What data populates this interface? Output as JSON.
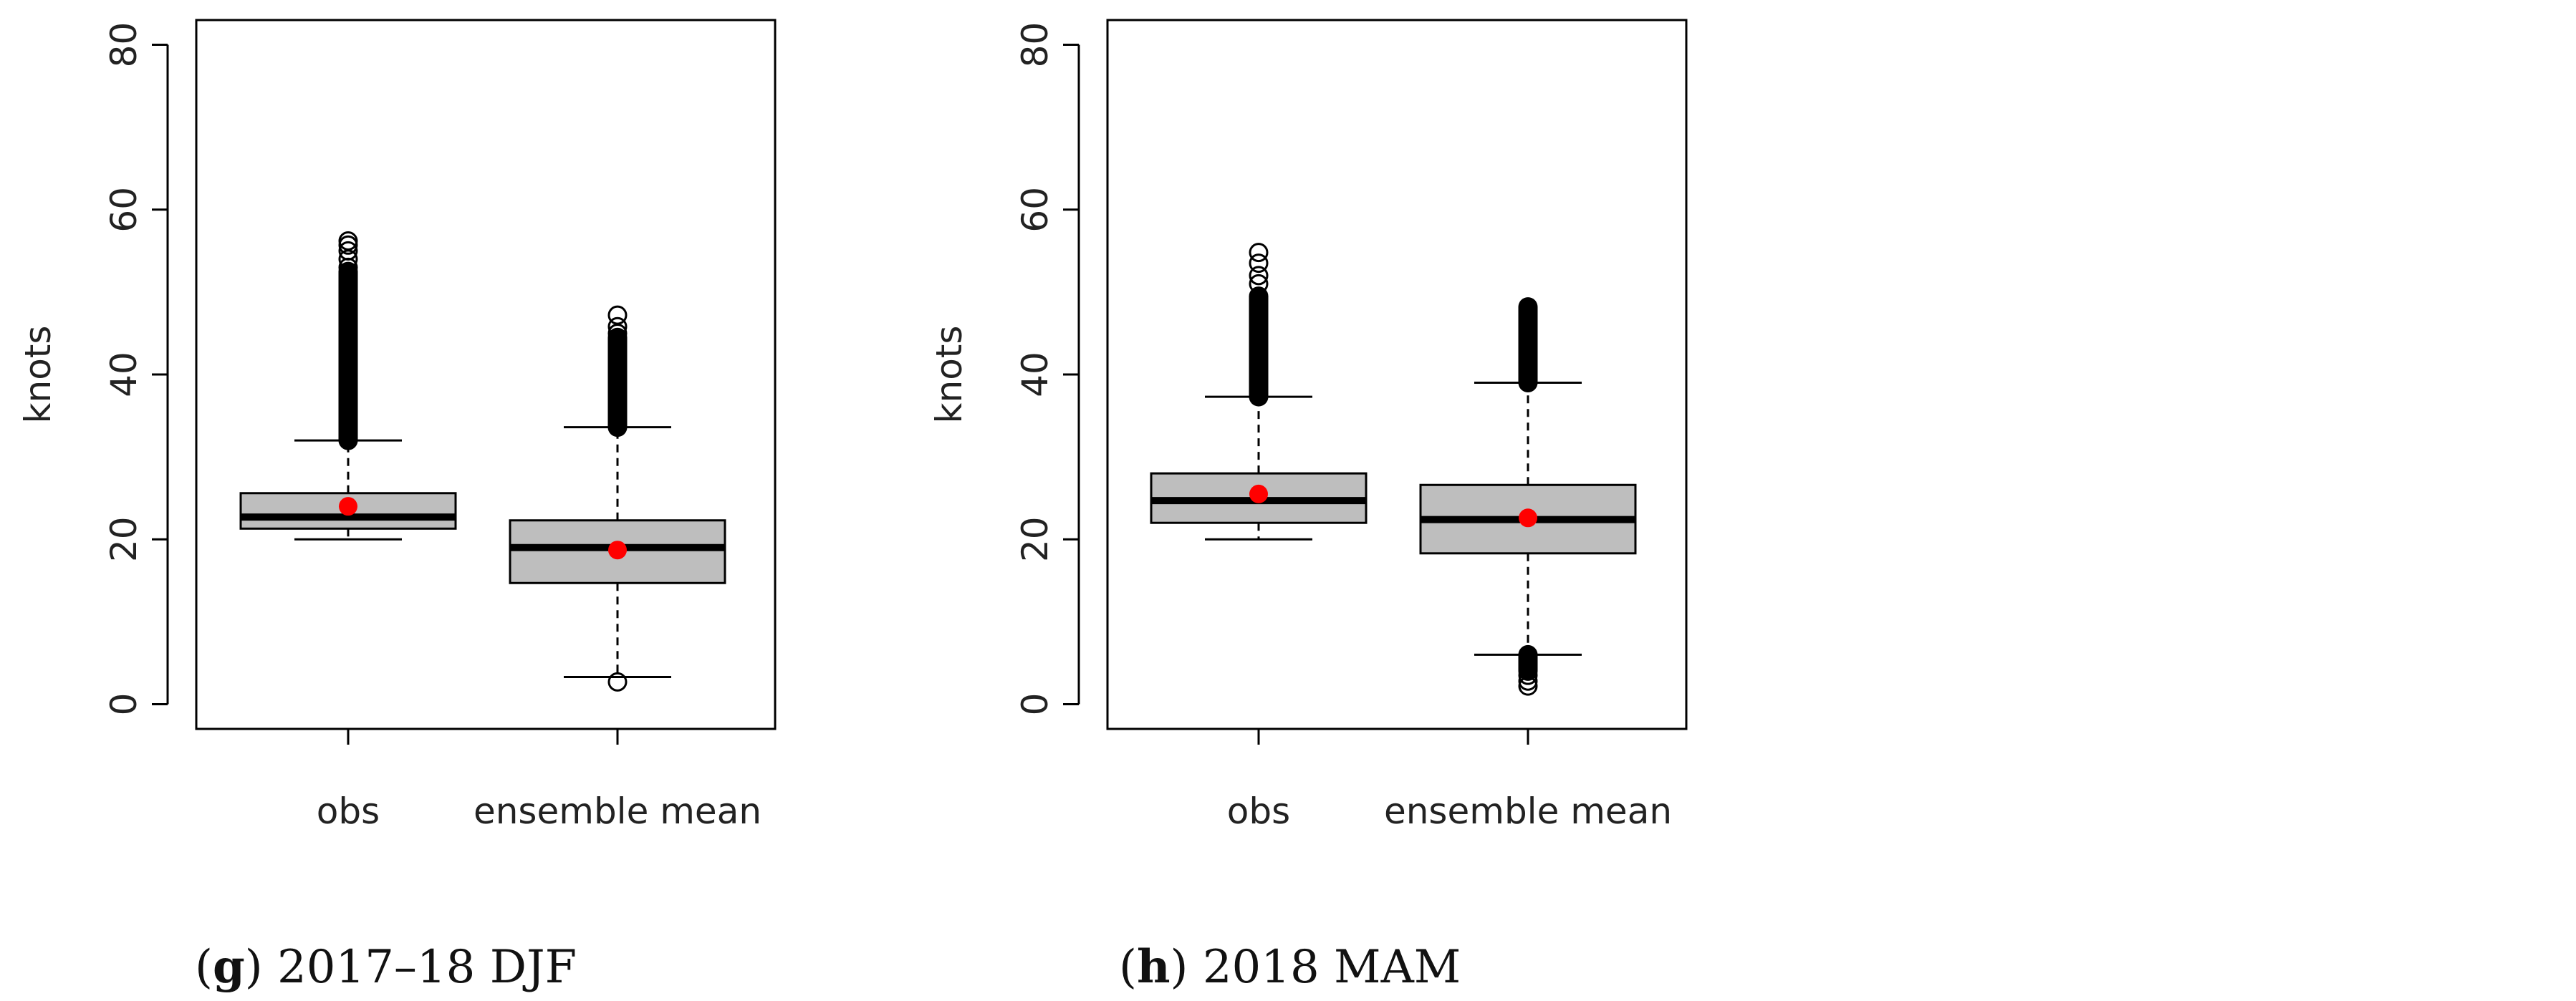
{
  "chart_data": [
    {
      "type": "box",
      "ylabel": "knots",
      "ylim": [
        -3,
        83
      ],
      "yticks": [
        0,
        20,
        40,
        60,
        80
      ],
      "caption_letter": "g",
      "caption_text": "2017–18 DJF",
      "categories": [
        "obs",
        "ensemble mean"
      ],
      "boxes": [
        {
          "name": "obs",
          "whisker_low": 20,
          "q1": 21.3,
          "median": 22.7,
          "q3": 25.6,
          "whisker_high": 32,
          "mean": 24,
          "outliers_low": [],
          "outlier_band_high": [
            32,
            52.5
          ],
          "outliers_high": [
            53,
            54,
            55,
            55.7,
            56.2
          ]
        },
        {
          "name": "ensemble mean",
          "whisker_low": 3.3,
          "q1": 14.7,
          "median": 19,
          "q3": 22.3,
          "whisker_high": 33.6,
          "mean": 18.7,
          "outliers_low": [
            2.7
          ],
          "outlier_band_high": [
            33.6,
            44.5
          ],
          "outliers_high": [
            45,
            45.8,
            47.2
          ]
        }
      ]
    },
    {
      "type": "box",
      "ylabel": "knots",
      "ylim": [
        -3,
        83
      ],
      "yticks": [
        0,
        20,
        40,
        60,
        80
      ],
      "caption_letter": "h",
      "caption_text": "2018 MAM",
      "categories": [
        "obs",
        "ensemble mean"
      ],
      "boxes": [
        {
          "name": "obs",
          "whisker_low": 20,
          "q1": 22,
          "median": 24.7,
          "q3": 28,
          "whisker_high": 37.3,
          "mean": 25.5,
          "outliers_low": [],
          "outlier_band_high": [
            37.3,
            49.5
          ],
          "outliers_high": [
            51,
            52,
            53.5,
            54.8
          ]
        },
        {
          "name": "ensemble mean",
          "whisker_low": 6,
          "q1": 18.3,
          "median": 22.4,
          "q3": 26.6,
          "whisker_high": 39,
          "mean": 22.6,
          "outliers_low": [
            2.2,
            2.8,
            3.5
          ],
          "outlier_band_low": [
            4,
            6
          ],
          "outlier_band_high": [
            39,
            48.2
          ],
          "outliers_high": []
        }
      ]
    }
  ]
}
